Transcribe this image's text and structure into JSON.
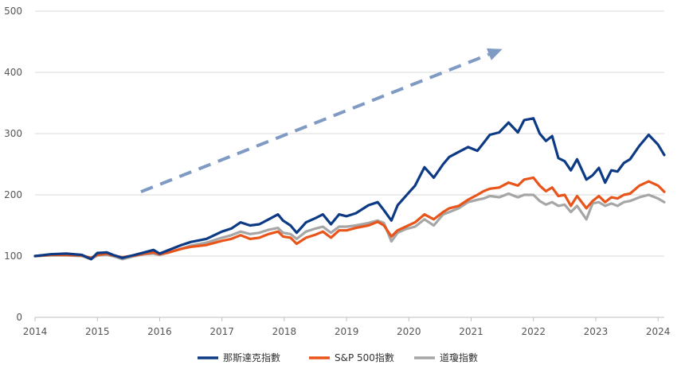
{
  "chart_data": {
    "type": "line",
    "title": "",
    "xlabel": "",
    "ylabel": "",
    "xlim": [
      2014,
      2024.1
    ],
    "ylim": [
      0,
      500
    ],
    "x_ticks": [
      "2014",
      "2015",
      "2016",
      "2017",
      "2018",
      "2019",
      "2020",
      "2021",
      "2022",
      "2023",
      "2024"
    ],
    "y_ticks": [
      "0",
      "100",
      "200",
      "300",
      "400",
      "500"
    ],
    "grid": "horizontal",
    "legend_position": "bottom",
    "trend_arrow": {
      "from": [
        2015.7,
        205
      ],
      "to": [
        2021.5,
        438
      ],
      "color": "#7f9bc4",
      "style": "dashed"
    },
    "series": [
      {
        "name": "那斯達克指數",
        "color": "#0d3a84",
        "points": [
          [
            2014.0,
            100
          ],
          [
            2014.25,
            103
          ],
          [
            2014.5,
            104
          ],
          [
            2014.75,
            102
          ],
          [
            2014.9,
            95
          ],
          [
            2015.0,
            105
          ],
          [
            2015.15,
            106
          ],
          [
            2015.25,
            102
          ],
          [
            2015.4,
            97
          ],
          [
            2015.6,
            102
          ],
          [
            2015.75,
            106
          ],
          [
            2015.9,
            110
          ],
          [
            2016.0,
            104
          ],
          [
            2016.15,
            110
          ],
          [
            2016.35,
            118
          ],
          [
            2016.5,
            123
          ],
          [
            2016.75,
            128
          ],
          [
            2017.0,
            140
          ],
          [
            2017.15,
            145
          ],
          [
            2017.3,
            155
          ],
          [
            2017.45,
            150
          ],
          [
            2017.6,
            152
          ],
          [
            2017.75,
            160
          ],
          [
            2017.9,
            168
          ],
          [
            2017.98,
            158
          ],
          [
            2018.1,
            150
          ],
          [
            2018.2,
            138
          ],
          [
            2018.35,
            155
          ],
          [
            2018.5,
            162
          ],
          [
            2018.62,
            168
          ],
          [
            2018.75,
            152
          ],
          [
            2018.88,
            168
          ],
          [
            2019.0,
            165
          ],
          [
            2019.15,
            170
          ],
          [
            2019.35,
            183
          ],
          [
            2019.5,
            188
          ],
          [
            2019.6,
            175
          ],
          [
            2019.72,
            158
          ],
          [
            2019.82,
            183
          ],
          [
            2019.95,
            198
          ],
          [
            2020.1,
            215
          ],
          [
            2020.25,
            245
          ],
          [
            2020.4,
            228
          ],
          [
            2020.55,
            250
          ],
          [
            2020.65,
            262
          ],
          [
            2020.8,
            270
          ],
          [
            2020.95,
            278
          ],
          [
            2021.1,
            272
          ],
          [
            2021.2,
            285
          ],
          [
            2021.3,
            298
          ],
          [
            2021.45,
            302
          ],
          [
            2021.6,
            318
          ],
          [
            2021.75,
            302
          ],
          [
            2021.85,
            322
          ],
          [
            2022.0,
            325
          ],
          [
            2022.1,
            300
          ],
          [
            2022.2,
            288
          ],
          [
            2022.3,
            296
          ],
          [
            2022.4,
            260
          ],
          [
            2022.5,
            255
          ],
          [
            2022.6,
            240
          ],
          [
            2022.7,
            258
          ],
          [
            2022.85,
            225
          ],
          [
            2022.95,
            232
          ],
          [
            2023.05,
            244
          ],
          [
            2023.15,
            220
          ],
          [
            2023.25,
            240
          ],
          [
            2023.35,
            238
          ],
          [
            2023.45,
            252
          ],
          [
            2023.55,
            258
          ],
          [
            2023.7,
            280
          ],
          [
            2023.85,
            298
          ],
          [
            2024.0,
            282
          ],
          [
            2024.1,
            265
          ]
        ]
      },
      {
        "name": "S&P 500指數",
        "color": "#e8541a",
        "points": [
          [
            2014.0,
            100
          ],
          [
            2014.25,
            102
          ],
          [
            2014.5,
            102
          ],
          [
            2014.75,
            101
          ],
          [
            2014.9,
            97
          ],
          [
            2015.0,
            102
          ],
          [
            2015.15,
            104
          ],
          [
            2015.25,
            101
          ],
          [
            2015.4,
            98
          ],
          [
            2015.6,
            101
          ],
          [
            2015.75,
            104
          ],
          [
            2015.9,
            106
          ],
          [
            2016.0,
            103
          ],
          [
            2016.15,
            106
          ],
          [
            2016.35,
            112
          ],
          [
            2016.5,
            115
          ],
          [
            2016.75,
            118
          ],
          [
            2017.0,
            125
          ],
          [
            2017.15,
            128
          ],
          [
            2017.3,
            134
          ],
          [
            2017.45,
            128
          ],
          [
            2017.6,
            130
          ],
          [
            2017.75,
            136
          ],
          [
            2017.9,
            140
          ],
          [
            2017.98,
            132
          ],
          [
            2018.1,
            130
          ],
          [
            2018.2,
            120
          ],
          [
            2018.35,
            130
          ],
          [
            2018.5,
            135
          ],
          [
            2018.62,
            140
          ],
          [
            2018.75,
            130
          ],
          [
            2018.88,
            142
          ],
          [
            2019.0,
            142
          ],
          [
            2019.15,
            146
          ],
          [
            2019.35,
            150
          ],
          [
            2019.5,
            156
          ],
          [
            2019.6,
            150
          ],
          [
            2019.72,
            132
          ],
          [
            2019.82,
            142
          ],
          [
            2019.95,
            148
          ],
          [
            2020.1,
            155
          ],
          [
            2020.25,
            168
          ],
          [
            2020.4,
            160
          ],
          [
            2020.55,
            172
          ],
          [
            2020.65,
            178
          ],
          [
            2020.8,
            182
          ],
          [
            2020.95,
            192
          ],
          [
            2021.1,
            200
          ],
          [
            2021.2,
            206
          ],
          [
            2021.3,
            210
          ],
          [
            2021.45,
            212
          ],
          [
            2021.6,
            220
          ],
          [
            2021.75,
            215
          ],
          [
            2021.85,
            225
          ],
          [
            2022.0,
            228
          ],
          [
            2022.1,
            215
          ],
          [
            2022.2,
            206
          ],
          [
            2022.3,
            212
          ],
          [
            2022.4,
            198
          ],
          [
            2022.5,
            200
          ],
          [
            2022.6,
            182
          ],
          [
            2022.7,
            198
          ],
          [
            2022.85,
            178
          ],
          [
            2022.95,
            190
          ],
          [
            2023.05,
            198
          ],
          [
            2023.15,
            188
          ],
          [
            2023.25,
            196
          ],
          [
            2023.35,
            194
          ],
          [
            2023.45,
            200
          ],
          [
            2023.55,
            202
          ],
          [
            2023.7,
            215
          ],
          [
            2023.85,
            222
          ],
          [
            2024.0,
            215
          ],
          [
            2024.1,
            205
          ]
        ]
      },
      {
        "name": "道瓊指數",
        "color": "#a6a6a6",
        "points": [
          [
            2014.0,
            100
          ],
          [
            2014.25,
            101
          ],
          [
            2014.5,
            101
          ],
          [
            2014.75,
            100
          ],
          [
            2014.9,
            95
          ],
          [
            2015.0,
            101
          ],
          [
            2015.15,
            102
          ],
          [
            2015.25,
            100
          ],
          [
            2015.4,
            95
          ],
          [
            2015.6,
            100
          ],
          [
            2015.75,
            103
          ],
          [
            2015.9,
            104
          ],
          [
            2016.0,
            102
          ],
          [
            2016.15,
            106
          ],
          [
            2016.35,
            112
          ],
          [
            2016.5,
            117
          ],
          [
            2016.75,
            122
          ],
          [
            2017.0,
            130
          ],
          [
            2017.15,
            134
          ],
          [
            2017.3,
            140
          ],
          [
            2017.45,
            136
          ],
          [
            2017.6,
            138
          ],
          [
            2017.75,
            143
          ],
          [
            2017.9,
            146
          ],
          [
            2017.98,
            138
          ],
          [
            2018.1,
            136
          ],
          [
            2018.2,
            128
          ],
          [
            2018.35,
            140
          ],
          [
            2018.5,
            145
          ],
          [
            2018.62,
            148
          ],
          [
            2018.75,
            138
          ],
          [
            2018.88,
            148
          ],
          [
            2019.0,
            148
          ],
          [
            2019.15,
            150
          ],
          [
            2019.35,
            154
          ],
          [
            2019.5,
            158
          ],
          [
            2019.6,
            154
          ],
          [
            2019.72,
            124
          ],
          [
            2019.82,
            138
          ],
          [
            2019.95,
            144
          ],
          [
            2020.1,
            148
          ],
          [
            2020.25,
            160
          ],
          [
            2020.4,
            150
          ],
          [
            2020.55,
            168
          ],
          [
            2020.65,
            172
          ],
          [
            2020.8,
            178
          ],
          [
            2020.95,
            188
          ],
          [
            2021.1,
            192
          ],
          [
            2021.2,
            194
          ],
          [
            2021.3,
            198
          ],
          [
            2021.45,
            196
          ],
          [
            2021.6,
            202
          ],
          [
            2021.75,
            196
          ],
          [
            2021.85,
            200
          ],
          [
            2022.0,
            200
          ],
          [
            2022.1,
            190
          ],
          [
            2022.2,
            184
          ],
          [
            2022.3,
            188
          ],
          [
            2022.4,
            182
          ],
          [
            2022.5,
            184
          ],
          [
            2022.6,
            172
          ],
          [
            2022.7,
            182
          ],
          [
            2022.85,
            160
          ],
          [
            2022.95,
            186
          ],
          [
            2023.05,
            188
          ],
          [
            2023.15,
            182
          ],
          [
            2023.25,
            186
          ],
          [
            2023.35,
            182
          ],
          [
            2023.45,
            188
          ],
          [
            2023.55,
            190
          ],
          [
            2023.7,
            196
          ],
          [
            2023.85,
            200
          ],
          [
            2024.0,
            194
          ],
          [
            2024.1,
            188
          ]
        ]
      }
    ]
  }
}
